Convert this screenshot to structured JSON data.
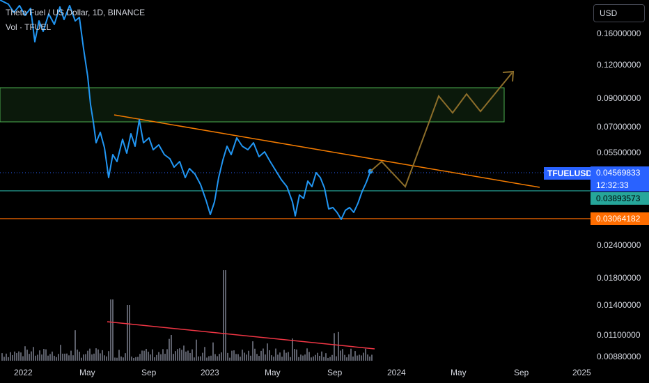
{
  "legend": {
    "title": "Theta Fuel / US Dollar, 1D, BINANCE",
    "volume": "Vol · TFUEL"
  },
  "currency_button": "USD",
  "price_scale": {
    "ticks": [
      {
        "label": "0.16000000",
        "value": 0.16
      },
      {
        "label": "0.12000000",
        "value": 0.12
      },
      {
        "label": "0.09000000",
        "value": 0.09
      },
      {
        "label": "0.07000000",
        "value": 0.07
      },
      {
        "label": "0.05500000",
        "value": 0.055
      },
      {
        "label": "0.02400000",
        "value": 0.024
      },
      {
        "label": "0.01800000",
        "value": 0.018
      },
      {
        "label": "0.01400000",
        "value": 0.014
      },
      {
        "label": "0.01100000",
        "value": 0.011
      },
      {
        "label": "0.00880000",
        "value": 0.0088
      }
    ]
  },
  "badges": {
    "symbol": "TFUELUSD",
    "current_price": "0.04569833",
    "countdown": "12:32:33",
    "support_green": "0.03893573",
    "support_orange": "0.03064182"
  },
  "time_scale": {
    "ticks": [
      "2022",
      "May",
      "Sep",
      "2023",
      "May",
      "Sep",
      "2024",
      "May",
      "Sep",
      "2025"
    ]
  },
  "colors": {
    "price_line": "#2196f3",
    "trendline": "#f57c00",
    "volume_trendline": "#f23645",
    "projection": "#8d6e2a",
    "zone_border": "#4caf50",
    "green_line": "#26a69a",
    "orange_line": "#ff6d00",
    "volume_bars": "#5d606b"
  },
  "chart_data": {
    "type": "line",
    "title": "Theta Fuel / US Dollar, 1D, BINANCE",
    "series": [
      {
        "name": "TFUELUSD",
        "x": [
          "2022-01",
          "2022-02",
          "2022-03",
          "2022-04",
          "2022-05",
          "2022-06",
          "2022-07",
          "2022-08",
          "2022-09",
          "2022-10",
          "2022-11",
          "2022-12",
          "2023-01",
          "2023-02",
          "2023-03",
          "2023-04",
          "2023-05",
          "2023-06",
          "2023-07",
          "2023-08",
          "2023-09",
          "2023-10",
          "2023-11"
        ],
        "y": [
          0.17,
          0.2,
          0.18,
          0.2,
          0.09,
          0.048,
          0.058,
          0.07,
          0.06,
          0.055,
          0.05,
          0.035,
          0.058,
          0.06,
          0.055,
          0.05,
          0.04,
          0.035,
          0.04,
          0.038,
          0.034,
          0.036,
          0.0457
        ]
      }
    ],
    "yscale": "log",
    "ylim": [
      0.0086,
      0.23
    ]
  }
}
